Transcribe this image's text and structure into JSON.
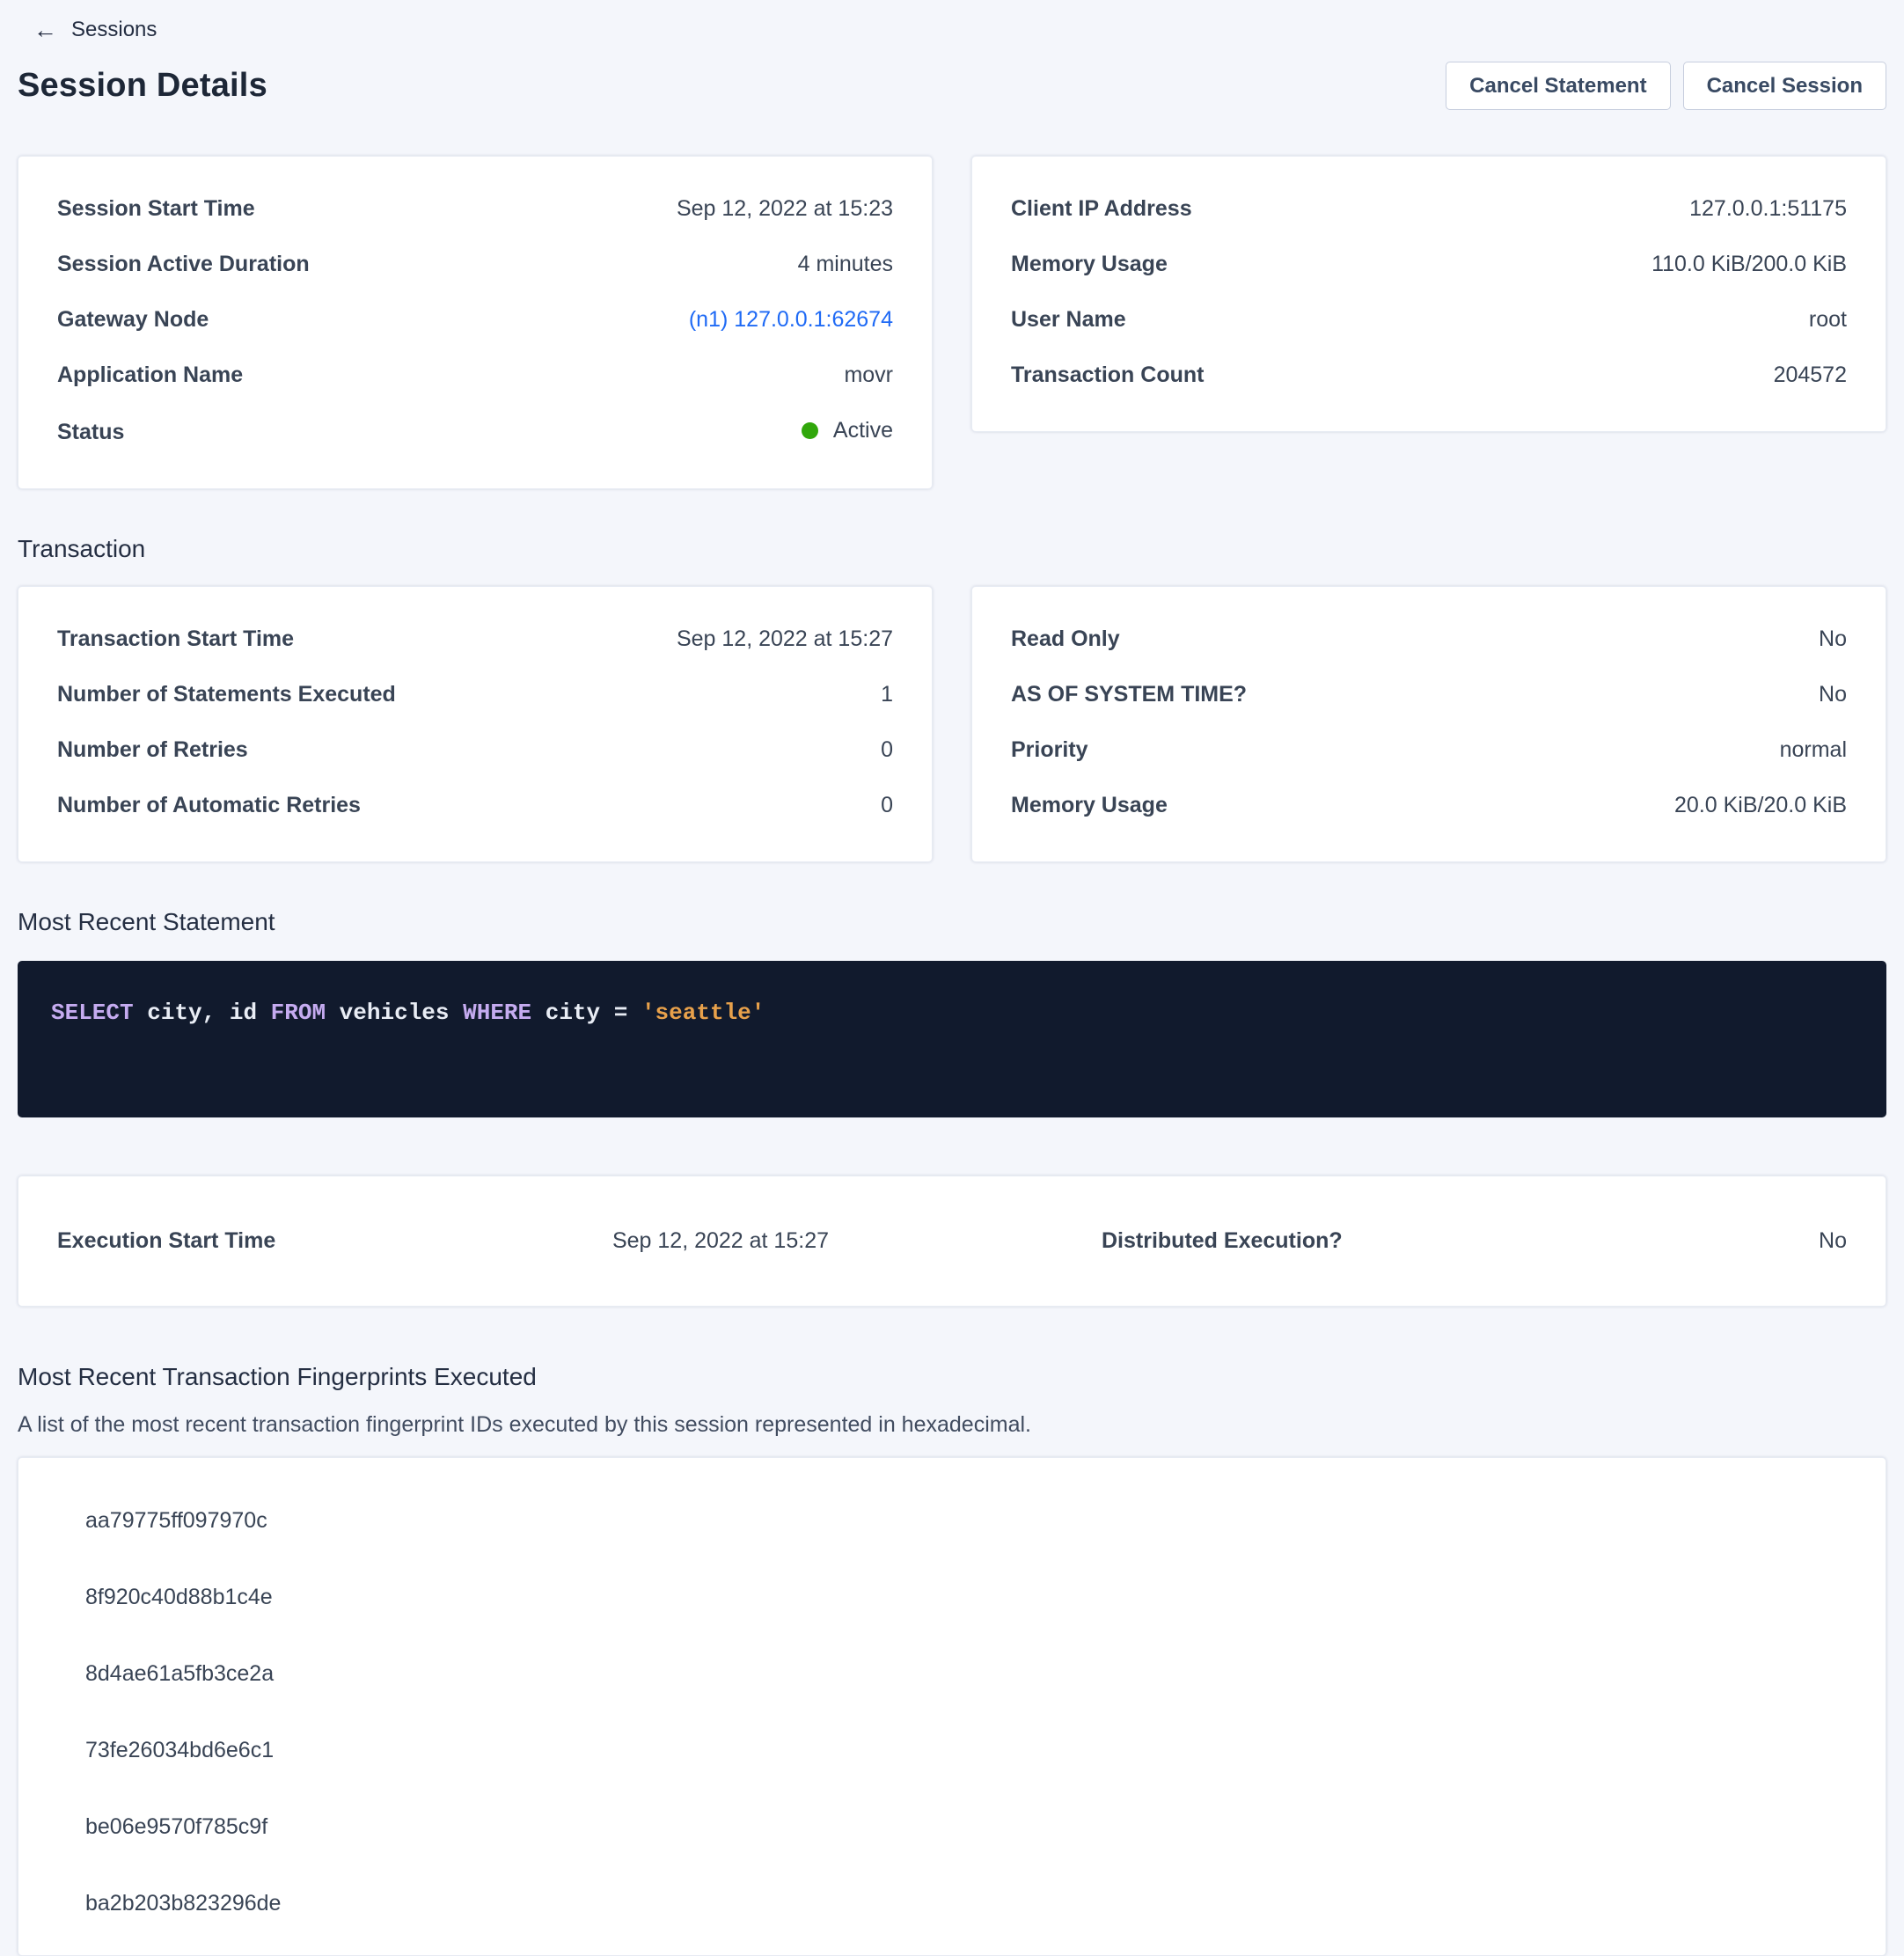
{
  "nav": {
    "back_label": "Sessions"
  },
  "icons": {
    "back_arrow": "←"
  },
  "header": {
    "title": "Session Details",
    "cancel_statement_label": "Cancel Statement",
    "cancel_session_label": "Cancel Session"
  },
  "session_summary": {
    "left": {
      "rows": [
        {
          "label": "Session Start Time",
          "value": "Sep 12, 2022 at 15:23"
        },
        {
          "label": "Session Active Duration",
          "value": "4 minutes"
        },
        {
          "label": "Gateway Node",
          "value": "(n1) 127.0.0.1:62674"
        },
        {
          "label": "Application Name",
          "value": "movr"
        },
        {
          "label": "Status",
          "value": "Active"
        }
      ]
    },
    "right": {
      "rows": [
        {
          "label": "Client IP Address",
          "value": "127.0.0.1:51175"
        },
        {
          "label": "Memory Usage",
          "value": "110.0 KiB/200.0 KiB"
        },
        {
          "label": "User Name",
          "value": "root"
        },
        {
          "label": "Transaction Count",
          "value": "204572"
        }
      ]
    }
  },
  "transaction": {
    "section_title": "Transaction",
    "left": {
      "rows": [
        {
          "label": "Transaction Start Time",
          "value": "Sep 12, 2022 at 15:27"
        },
        {
          "label": "Number of Statements Executed",
          "value": "1"
        },
        {
          "label": "Number of Retries",
          "value": "0"
        },
        {
          "label": "Number of Automatic Retries",
          "value": "0"
        }
      ]
    },
    "right": {
      "rows": [
        {
          "label": "Read Only",
          "value": "No"
        },
        {
          "label": "AS OF SYSTEM TIME?",
          "value": "No"
        },
        {
          "label": "Priority",
          "value": "normal"
        },
        {
          "label": "Memory Usage",
          "value": "20.0 KiB/20.0 KiB"
        }
      ]
    }
  },
  "statement": {
    "section_title": "Most Recent Statement",
    "full_text": "SELECT city, id FROM vehicles WHERE city = 'seattle'",
    "tokens": [
      {
        "text": "SELECT",
        "type": "keyword"
      },
      {
        "text": " city, id ",
        "type": "plain"
      },
      {
        "text": "FROM",
        "type": "keyword"
      },
      {
        "text": " vehicles ",
        "type": "plain"
      },
      {
        "text": "WHERE",
        "type": "keyword"
      },
      {
        "text": " city = ",
        "type": "plain"
      },
      {
        "text": "'seattle'",
        "type": "string"
      }
    ]
  },
  "execution": {
    "left": {
      "label": "Execution Start Time",
      "value": "Sep 12, 2022 at 15:27"
    },
    "right": {
      "label": "Distributed Execution?",
      "value": "No"
    }
  },
  "fingerprints": {
    "section_title": "Most Recent Transaction Fingerprints Executed",
    "description": "A list of the most recent transaction fingerprint IDs executed by this session represented in hexadecimal.",
    "items": [
      "aa79775ff097970c",
      "8f920c40d88b1c4e",
      "8d4ae61a5fb3ce2a",
      "73fe26034bd6e6c1",
      "be06e9570f785c9f",
      "ba2b203b823296de"
    ]
  },
  "colors": {
    "page_background": "#f4f6fb",
    "link_blue": "#1f6af5",
    "status_active_green": "#31a70b",
    "code_background": "#111a2d",
    "code_keyword": "#c5abf0",
    "code_string": "#e8a14b"
  }
}
